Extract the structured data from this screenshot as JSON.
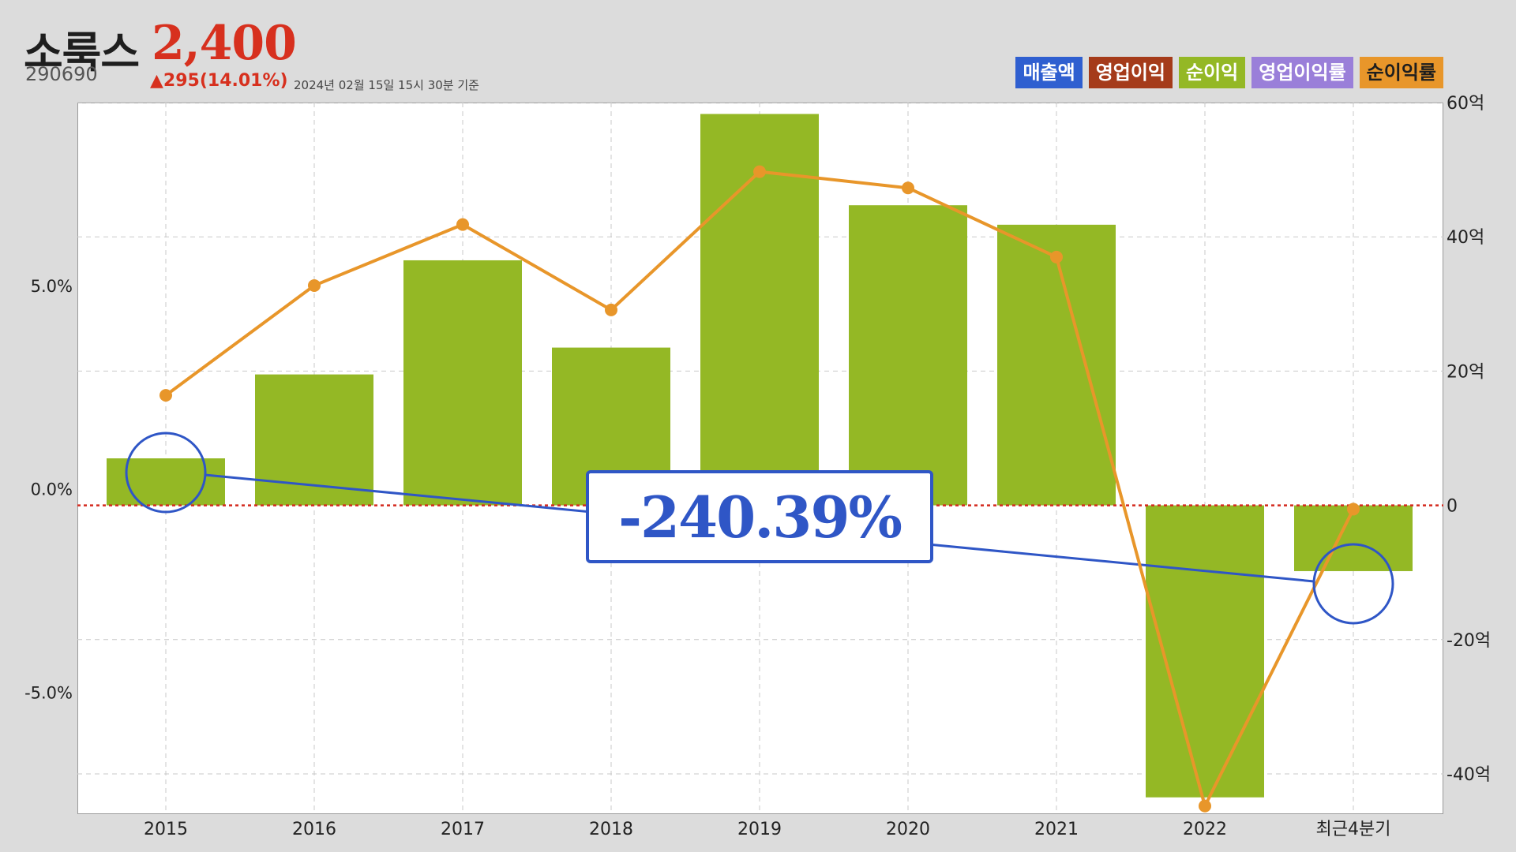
{
  "header": {
    "name": "소룩스",
    "price": "2,400",
    "code": "290690",
    "change": "▲295(14.01%)",
    "as_of": "2024년 02월 15일 15시 30분 기준"
  },
  "legend": [
    {
      "label": "매출액",
      "color": "#2f5fd0"
    },
    {
      "label": "영업이익",
      "color": "#a53b1a"
    },
    {
      "label": "순이익",
      "color": "#94b825"
    },
    {
      "label": "영업이익률",
      "color": "#9a7fd9"
    },
    {
      "label": "순이익률",
      "color": "#e8962a"
    }
  ],
  "callout": {
    "text": "-240.39%",
    "color": "#2f56c6"
  },
  "chart_data": {
    "type": "bar",
    "categories": [
      "2015",
      "2016",
      "2017",
      "2018",
      "2019",
      "2020",
      "2021",
      "2022",
      "최근4분기"
    ],
    "series": [
      {
        "name": "순이익",
        "axis": "right",
        "unit": "억",
        "color": "#94b825",
        "values": [
          7,
          19.5,
          36.5,
          23.5,
          58.3,
          44.7,
          41.8,
          -43.5,
          -9.8
        ]
      },
      {
        "name": "순이익률",
        "axis": "left",
        "unit": "%",
        "type": "line",
        "color": "#e8962a",
        "values": [
          2.3,
          5.0,
          6.5,
          4.4,
          7.8,
          7.4,
          5.7,
          -7.8,
          -0.5
        ]
      }
    ],
    "y_left": {
      "ticks": [
        "5.0%",
        "0.0%",
        "-5.0%"
      ],
      "tick_values": [
        5,
        0,
        -5
      ],
      "range": [
        -8,
        9.5
      ]
    },
    "y_right": {
      "ticks": [
        "60억",
        "40억",
        "20억",
        "0",
        "-20억",
        "-40억"
      ],
      "tick_values": [
        60,
        40,
        20,
        0,
        -20,
        -40
      ],
      "range": [
        -46,
        60
      ]
    },
    "zero_line": {
      "axis": "right",
      "value": 0,
      "color": "#d42a1f",
      "style": "dotted"
    },
    "grid": true,
    "highlight": {
      "from_index": 0,
      "to_index": 8
    }
  }
}
